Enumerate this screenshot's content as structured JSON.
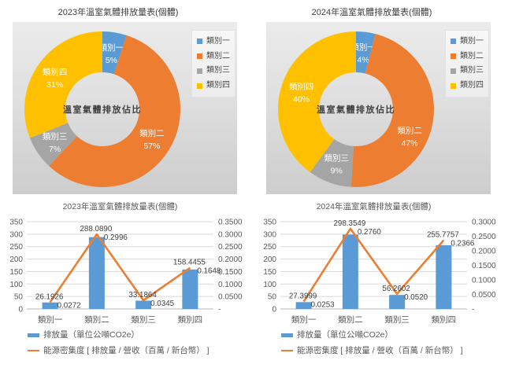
{
  "colors": {
    "cat1_blue": "#5B9BD5",
    "cat2_orange": "#ED7D31",
    "cat3_gray": "#A5A5A5",
    "cat4_yellow": "#FFC000",
    "axis_text": "#595959",
    "data_label_text": "#404040",
    "gridline": "#D9D9D9",
    "axis_line": "#B7B7B7"
  },
  "chart_data": [
    {
      "type": "pie",
      "subtype": "doughnut",
      "title": "2023年溫室氣體排放量表(個體)",
      "center_label": "溫室氣體排放佔比",
      "categories": [
        "類別一",
        "類別二",
        "類別三",
        "類別四"
      ],
      "values": [
        5,
        57,
        7,
        31
      ],
      "value_labels": [
        "5%",
        "57%",
        "7%",
        "31%"
      ],
      "colors": [
        "#5B9BD5",
        "#ED7D31",
        "#A5A5A5",
        "#FFC000"
      ],
      "legend": {
        "position": "right",
        "items": [
          "類別一",
          "類別二",
          "類別三",
          "類別四"
        ]
      }
    },
    {
      "type": "pie",
      "subtype": "doughnut",
      "title": "2024年溫室氣體排放量表(個體)",
      "center_label": "溫室氣體排放佔比",
      "categories": [
        "類別一",
        "類別二",
        "類別三",
        "類別四"
      ],
      "values": [
        4,
        47,
        9,
        40
      ],
      "value_labels": [
        "4%",
        "47%",
        "9%",
        "40%"
      ],
      "colors": [
        "#5B9BD5",
        "#ED7D31",
        "#A5A5A5",
        "#FFC000"
      ],
      "legend": {
        "position": "right",
        "items": [
          "類別一",
          "類別二",
          "類別三",
          "類別四"
        ]
      }
    },
    {
      "type": "bar",
      "subtype": "bar-line-combo",
      "title": "2023年溫室氣體排放量表(個體)",
      "categories": [
        "類別一",
        "類別二",
        "類別三",
        "類別四"
      ],
      "series": [
        {
          "name": "排放量（單位公噸CO2e）",
          "type": "bar",
          "axis": "left",
          "color": "#5B9BD5",
          "values": [
            26.1926,
            288.089,
            33.1864,
            158.4455
          ],
          "labels": [
            "26.1926",
            "288.0890",
            "33.1864",
            "158.4455"
          ]
        },
        {
          "name": "能源密集度 [ 排放量 / 營收（百萬 / 新台幣） ]",
          "type": "line",
          "axis": "right",
          "color": "#ED7D31",
          "values": [
            0.0272,
            0.2996,
            0.0345,
            0.1648
          ],
          "labels": [
            "0.0272",
            "0.2996",
            "0.0345",
            "0.1648"
          ]
        }
      ],
      "left_axis": {
        "min": 0,
        "max": 350,
        "step": 50,
        "tick_labels": [
          "350",
          "300",
          "250",
          "200",
          "150",
          "100",
          "50",
          "0"
        ]
      },
      "right_axis": {
        "min": 0,
        "max": 0.35,
        "step": 0.05,
        "tick_labels": [
          "0.3500",
          "0.3000",
          "0.2500",
          "0.2000",
          "0.1500",
          "0.1000",
          "0.0500",
          "-"
        ]
      },
      "grid": true,
      "legend_position": "bottom-left"
    },
    {
      "type": "bar",
      "subtype": "bar-line-combo",
      "title": "2024年溫室氣體排放量表(個體)",
      "categories": [
        "類別一",
        "類別二",
        "類別三",
        "類別四"
      ],
      "series": [
        {
          "name": "排放量（單位公噸CO2e）",
          "type": "bar",
          "axis": "left",
          "color": "#5B9BD5",
          "values": [
            27.3999,
            298.3549,
            56.2602,
            255.7757
          ],
          "labels": [
            "27.3999",
            "298.3549",
            "56.2602",
            "255.7757"
          ]
        },
        {
          "name": "能源密集度 [ 排放量 / 營收（百萬 / 新台幣） ]",
          "type": "line",
          "axis": "right",
          "color": "#ED7D31",
          "values": [
            0.0253,
            0.276,
            0.052,
            0.2366
          ],
          "labels": [
            "0.0253",
            "0.2760",
            "0.0520",
            "0.2366"
          ]
        }
      ],
      "left_axis": {
        "min": 0,
        "max": 350,
        "step": 50,
        "tick_labels": [
          "350",
          "300",
          "250",
          "200",
          "150",
          "100",
          "50",
          "0"
        ]
      },
      "right_axis": {
        "min": 0,
        "max": 0.3,
        "step": 0.05,
        "tick_labels": [
          "0.3000",
          "0.2500",
          "0.2000",
          "0.1500",
          "0.1000",
          "0.0500",
          "-"
        ]
      },
      "grid": true,
      "legend_position": "bottom-left"
    }
  ]
}
